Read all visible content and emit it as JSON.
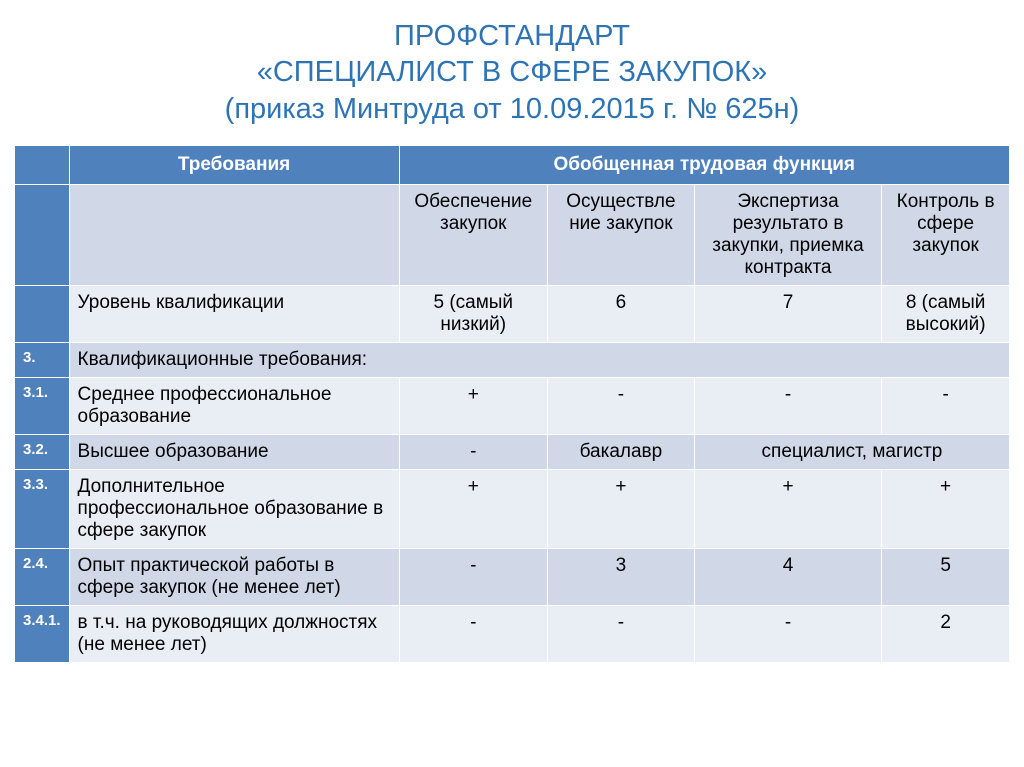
{
  "title_l1": "ПРОФСТАНДАРТ",
  "title_l2": "«СПЕЦИАЛИСТ В СФЕРЕ ЗАКУПОК»",
  "title_l3": "(приказ Минтруда от 10.09.2015 г. № 625н)",
  "header": {
    "req": "Требования",
    "func": "Обобщенная трудовая функция"
  },
  "subheaders": {
    "c1": "Обеспечение закупок",
    "c2": "Осуществле\nние закупок",
    "c3": "Экспертиза результато\nв закупки, приемка контракта",
    "c4": "Контроль в сфере закупок"
  },
  "rows": {
    "level": {
      "num": "",
      "label": "Уровень квалификации",
      "c1": "5 (самый низкий)",
      "c2": "6",
      "c3": "7",
      "c4": "8 (самый высокий)"
    },
    "qual": {
      "num": "3.",
      "label": "Квалификационные требования:"
    },
    "spo": {
      "num": "3.1.",
      "label": "Среднее профессиональное образование",
      "c1": "+",
      "c2": "-",
      "c3": "-",
      "c4": "-"
    },
    "he": {
      "num": "3.2.",
      "label": "Высшее образование",
      "c1": "-",
      "c2": "бакалавр",
      "c34": "специалист, магистр"
    },
    "dpo": {
      "num": "3.3.",
      "label": "Дополнительное профессиональное образование в сфере закупок",
      "c1": "+",
      "c2": "+",
      "c3": "+",
      "c4": "+"
    },
    "exp": {
      "num": "2.4.",
      "label": "Опыт практической работы в сфере закупок  (не менее лет)",
      "c1": "-",
      "c2": "3",
      "c3": "4",
      "c4": "5"
    },
    "lead": {
      "num": "3.4.1.",
      "label": "в т.ч. на руководящих должностях (не менее лет)",
      "c1": "-",
      "c2": "-",
      "c3": "-",
      "c4": "2"
    }
  },
  "style": {
    "title_color": "#2e74b5",
    "header_bg": "#4f81bd",
    "row_light": "#e9edf4",
    "row_dark": "#d0d8e8",
    "border": "#ffffff",
    "title_fontsize": 29,
    "body_fontsize": 19,
    "numcol_fontsize": 15,
    "slide_width": 1024,
    "slide_height": 767
  }
}
